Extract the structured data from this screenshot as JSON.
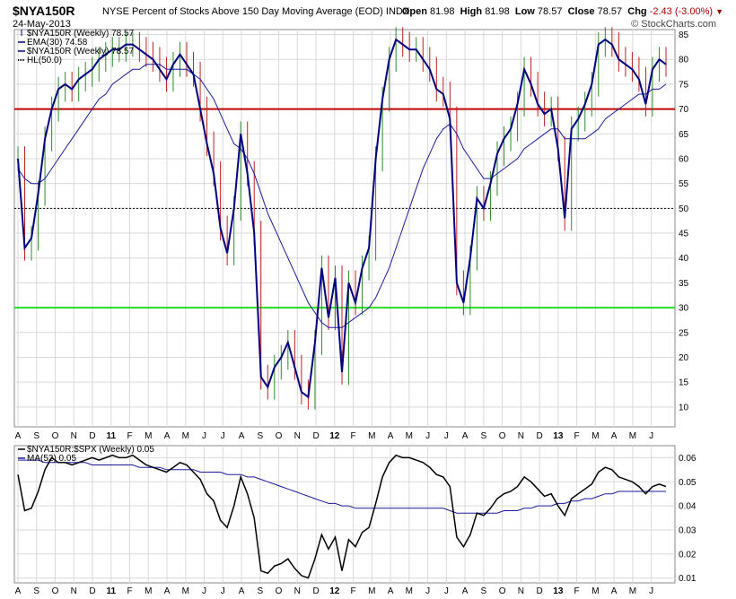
{
  "header": {
    "symbol": "$NYA150R",
    "description": "NYSE Percent of Stocks Above 150 Day Moving Average (EOD)",
    "exchange": "INDX",
    "date": "24-May-2013",
    "open_label": "Open",
    "open": "81.98",
    "high_label": "High",
    "high": "81.98",
    "low_label": "Low",
    "low": "78.57",
    "close_label": "Close",
    "close": "78.57",
    "chg_label": "Chg",
    "chg": "-2.43 (-3.00%)",
    "brand": "© StockCharts.com"
  },
  "colors": {
    "price": "#000080",
    "ema": "#1a1aa0",
    "up_bar": "#2e8b2e",
    "down_bar": "#c02020",
    "line70": "#c00000",
    "line30": "#22dd22",
    "ratio": "#000000",
    "ma": "#1a1aa0",
    "grid": "#d9d9d9"
  },
  "legend_main": [
    {
      "label": "$NYA150R (Weekly) 78.57",
      "style": "bar"
    },
    {
      "label": "EMA(30) 74.58",
      "style": "line"
    },
    {
      "label": "$NYA150R (Weekly) 78.57",
      "style": "line"
    },
    {
      "label": "HL(50.0)",
      "style": "dotted"
    }
  ],
  "legend_lower": [
    {
      "label": "$NYA150R:$SPX (Weekly) 0.05",
      "style": "line"
    },
    {
      "label": "MA(52) 0.05",
      "style": "line"
    }
  ],
  "x_axis_labels": [
    "A",
    "S",
    "O",
    "N",
    "D",
    "11",
    "F",
    "M",
    "A",
    "M",
    "J",
    "J",
    "A",
    "S",
    "O",
    "N",
    "D",
    "12",
    "F",
    "M",
    "A",
    "M",
    "J",
    "J",
    "A",
    "S",
    "O",
    "N",
    "D",
    "13",
    "F",
    "M",
    "A",
    "M",
    "J"
  ],
  "year_labels": [
    "11",
    "12",
    "13"
  ],
  "chart_data": [
    {
      "type": "line",
      "title": "$NYA150R NYSE Percent of Stocks Above 150 Day Moving Average (EOD)",
      "ylim": [
        6,
        86
      ],
      "yticks": [
        10,
        15,
        20,
        25,
        30,
        35,
        40,
        45,
        50,
        55,
        60,
        65,
        70,
        75,
        80,
        85
      ],
      "hlines": [
        {
          "value": 70,
          "role": "line70"
        },
        {
          "value": 30,
          "role": "line30"
        },
        {
          "value": 50,
          "role": "dotted"
        }
      ],
      "series": [
        {
          "name": "$NYA150R (Weekly)",
          "values": [
            60,
            42,
            44,
            53,
            64,
            70,
            74,
            75,
            74,
            76,
            77,
            78,
            80,
            81,
            82,
            82,
            83,
            83,
            82,
            81,
            80,
            78,
            76,
            79,
            81,
            79,
            77,
            70,
            63,
            57,
            46,
            41,
            50,
            65,
            57,
            45,
            16,
            14,
            18,
            20,
            23,
            18,
            13,
            12,
            23,
            38,
            28,
            36,
            17,
            35,
            31,
            38,
            42,
            60,
            72,
            80,
            84,
            83,
            82,
            82,
            80,
            78,
            74,
            73,
            68,
            35,
            31,
            40,
            52,
            50,
            55,
            61,
            64,
            66,
            71,
            78,
            75,
            71,
            69,
            70,
            62,
            48,
            66,
            68,
            71,
            75,
            83,
            84,
            83,
            80,
            79,
            78,
            76,
            71,
            78,
            80,
            79
          ]
        },
        {
          "name": "EMA(30)",
          "values": [
            58,
            56,
            55,
            55,
            56,
            58,
            60,
            62,
            64,
            66,
            68,
            70,
            72,
            73,
            75,
            76,
            77,
            78,
            78,
            79,
            79,
            79,
            78,
            78,
            78,
            78,
            77,
            76,
            74,
            72,
            69,
            66,
            63,
            62,
            60,
            57,
            53,
            49,
            46,
            43,
            40,
            37,
            34,
            31,
            29,
            27,
            26,
            26,
            26,
            27,
            28,
            29,
            30,
            32,
            35,
            38,
            42,
            46,
            50,
            54,
            58,
            61,
            64,
            66,
            67,
            65,
            62,
            60,
            58,
            56,
            56,
            57,
            58,
            59,
            60,
            62,
            63,
            64,
            65,
            66,
            66,
            64,
            64,
            64,
            64,
            65,
            66,
            68,
            69,
            70,
            71,
            72,
            73,
            73,
            74,
            74,
            75
          ]
        }
      ]
    },
    {
      "type": "line",
      "title": "$NYA150R:$SPX (Weekly)",
      "ylim": [
        0.008,
        0.065
      ],
      "yticks": [
        0.01,
        0.02,
        0.03,
        0.04,
        0.05,
        0.06
      ],
      "series": [
        {
          "name": "$NYA150R:$SPX (Weekly)",
          "values": [
            0.053,
            0.038,
            0.039,
            0.046,
            0.055,
            0.06,
            0.058,
            0.058,
            0.057,
            0.058,
            0.059,
            0.06,
            0.059,
            0.06,
            0.061,
            0.06,
            0.06,
            0.061,
            0.059,
            0.057,
            0.056,
            0.055,
            0.054,
            0.056,
            0.058,
            0.057,
            0.054,
            0.051,
            0.045,
            0.042,
            0.034,
            0.031,
            0.04,
            0.052,
            0.045,
            0.035,
            0.013,
            0.012,
            0.015,
            0.016,
            0.018,
            0.014,
            0.011,
            0.01,
            0.018,
            0.028,
            0.022,
            0.027,
            0.013,
            0.026,
            0.023,
            0.029,
            0.031,
            0.041,
            0.052,
            0.058,
            0.061,
            0.06,
            0.06,
            0.059,
            0.058,
            0.056,
            0.053,
            0.052,
            0.048,
            0.027,
            0.023,
            0.028,
            0.037,
            0.036,
            0.039,
            0.043,
            0.045,
            0.046,
            0.048,
            0.052,
            0.05,
            0.047,
            0.044,
            0.045,
            0.04,
            0.036,
            0.043,
            0.045,
            0.047,
            0.049,
            0.054,
            0.056,
            0.055,
            0.052,
            0.051,
            0.05,
            0.048,
            0.045,
            0.048,
            0.049,
            0.048
          ]
        },
        {
          "name": "MA(52)",
          "values": [
            0.059,
            0.059,
            0.059,
            0.059,
            0.058,
            0.058,
            0.058,
            0.058,
            0.058,
            0.058,
            0.058,
            0.057,
            0.057,
            0.057,
            0.057,
            0.057,
            0.057,
            0.057,
            0.056,
            0.056,
            0.056,
            0.056,
            0.055,
            0.055,
            0.055,
            0.055,
            0.055,
            0.054,
            0.054,
            0.054,
            0.054,
            0.053,
            0.053,
            0.053,
            0.052,
            0.052,
            0.051,
            0.05,
            0.049,
            0.048,
            0.047,
            0.046,
            0.045,
            0.044,
            0.043,
            0.042,
            0.041,
            0.041,
            0.04,
            0.04,
            0.039,
            0.039,
            0.039,
            0.039,
            0.039,
            0.039,
            0.039,
            0.039,
            0.039,
            0.039,
            0.039,
            0.039,
            0.039,
            0.039,
            0.038,
            0.037,
            0.037,
            0.037,
            0.037,
            0.037,
            0.037,
            0.037,
            0.038,
            0.038,
            0.038,
            0.039,
            0.039,
            0.04,
            0.04,
            0.04,
            0.041,
            0.041,
            0.042,
            0.042,
            0.043,
            0.043,
            0.044,
            0.045,
            0.045,
            0.046,
            0.046,
            0.046,
            0.046,
            0.046,
            0.046,
            0.046,
            0.046
          ]
        }
      ]
    }
  ]
}
